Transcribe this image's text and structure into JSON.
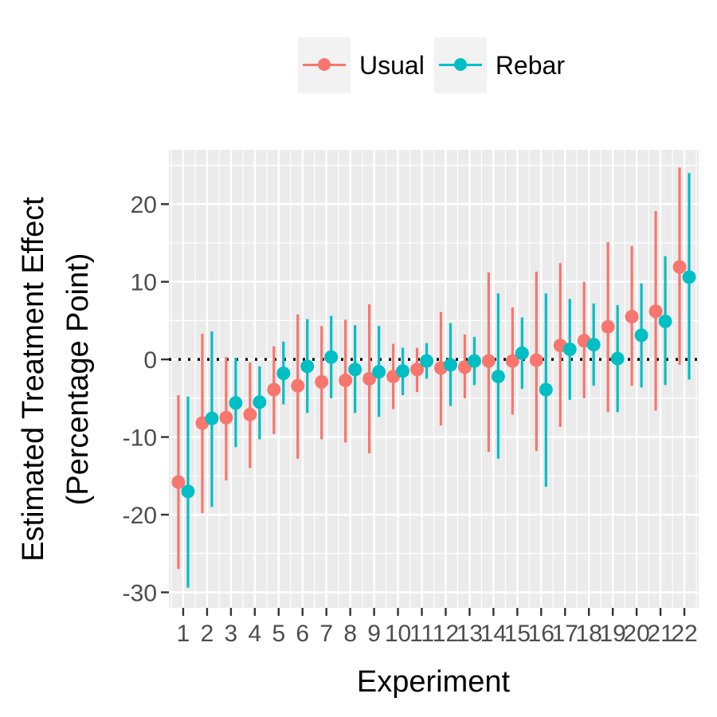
{
  "chart_data": {
    "type": "errorbar",
    "xlabel": "Experiment",
    "ylabel_lines": [
      "Estimated Treatment Effect",
      "(Percentage Point)"
    ],
    "categories": [
      "1",
      "2",
      "3",
      "4",
      "5",
      "6",
      "7",
      "8",
      "9",
      "10",
      "11",
      "12",
      "13",
      "14",
      "15",
      "16",
      "17",
      "18",
      "19",
      "20",
      "21",
      "22"
    ],
    "ylim": [
      -32,
      27
    ],
    "yticks": [
      20,
      10,
      0,
      -10,
      -20,
      -30
    ],
    "ytick_labels": [
      "20",
      "10",
      "0",
      "-10",
      "-20",
      "-30"
    ],
    "reference_line": 0,
    "legend_position": "top",
    "series": [
      {
        "name": "Usual",
        "color": "#F8766D",
        "estimates": [
          -15.8,
          -8.2,
          -7.5,
          -7.1,
          -3.9,
          -3.4,
          -2.9,
          -2.7,
          -2.5,
          -2.2,
          -1.3,
          -1.1,
          -1.0,
          -0.2,
          -0.2,
          -0.1,
          1.8,
          2.4,
          4.2,
          5.5,
          6.2,
          11.9
        ],
        "lower": [
          -27.0,
          -19.8,
          -15.6,
          -14.0,
          -9.6,
          -12.8,
          -10.3,
          -10.7,
          -12.1,
          -6.4,
          -4.2,
          -8.5,
          -5.0,
          -11.9,
          -7.1,
          -11.8,
          -8.7,
          -5.0,
          -6.8,
          -3.4,
          -6.6,
          -0.7
        ],
        "upper": [
          -4.6,
          3.3,
          0.3,
          -0.4,
          1.7,
          5.8,
          4.3,
          5.1,
          7.1,
          2.0,
          1.5,
          6.1,
          3.2,
          11.2,
          6.7,
          11.3,
          12.4,
          10.0,
          15.1,
          14.6,
          19.1,
          24.7
        ]
      },
      {
        "name": "Rebar",
        "color": "#00BFC4",
        "estimates": [
          -17.0,
          -7.6,
          -5.6,
          -5.5,
          -1.8,
          -0.9,
          0.3,
          -1.3,
          -1.6,
          -1.5,
          -0.2,
          -0.7,
          -0.2,
          -2.2,
          0.8,
          -3.9,
          1.3,
          1.9,
          0.1,
          3.1,
          4.9,
          10.6
        ],
        "lower": [
          -29.4,
          -19.0,
          -11.3,
          -10.3,
          -5.8,
          -6.9,
          -5.0,
          -6.9,
          -7.4,
          -4.6,
          -2.5,
          -6.0,
          -3.3,
          -12.8,
          -3.8,
          -16.4,
          -5.2,
          -3.4,
          -6.8,
          -3.6,
          -3.3,
          -2.6
        ],
        "upper": [
          -4.8,
          3.6,
          0.2,
          -0.9,
          2.3,
          5.2,
          5.6,
          4.4,
          4.3,
          1.5,
          2.1,
          4.7,
          2.9,
          8.5,
          5.4,
          8.5,
          7.8,
          7.2,
          7.0,
          9.8,
          13.3,
          24.0
        ]
      }
    ]
  }
}
